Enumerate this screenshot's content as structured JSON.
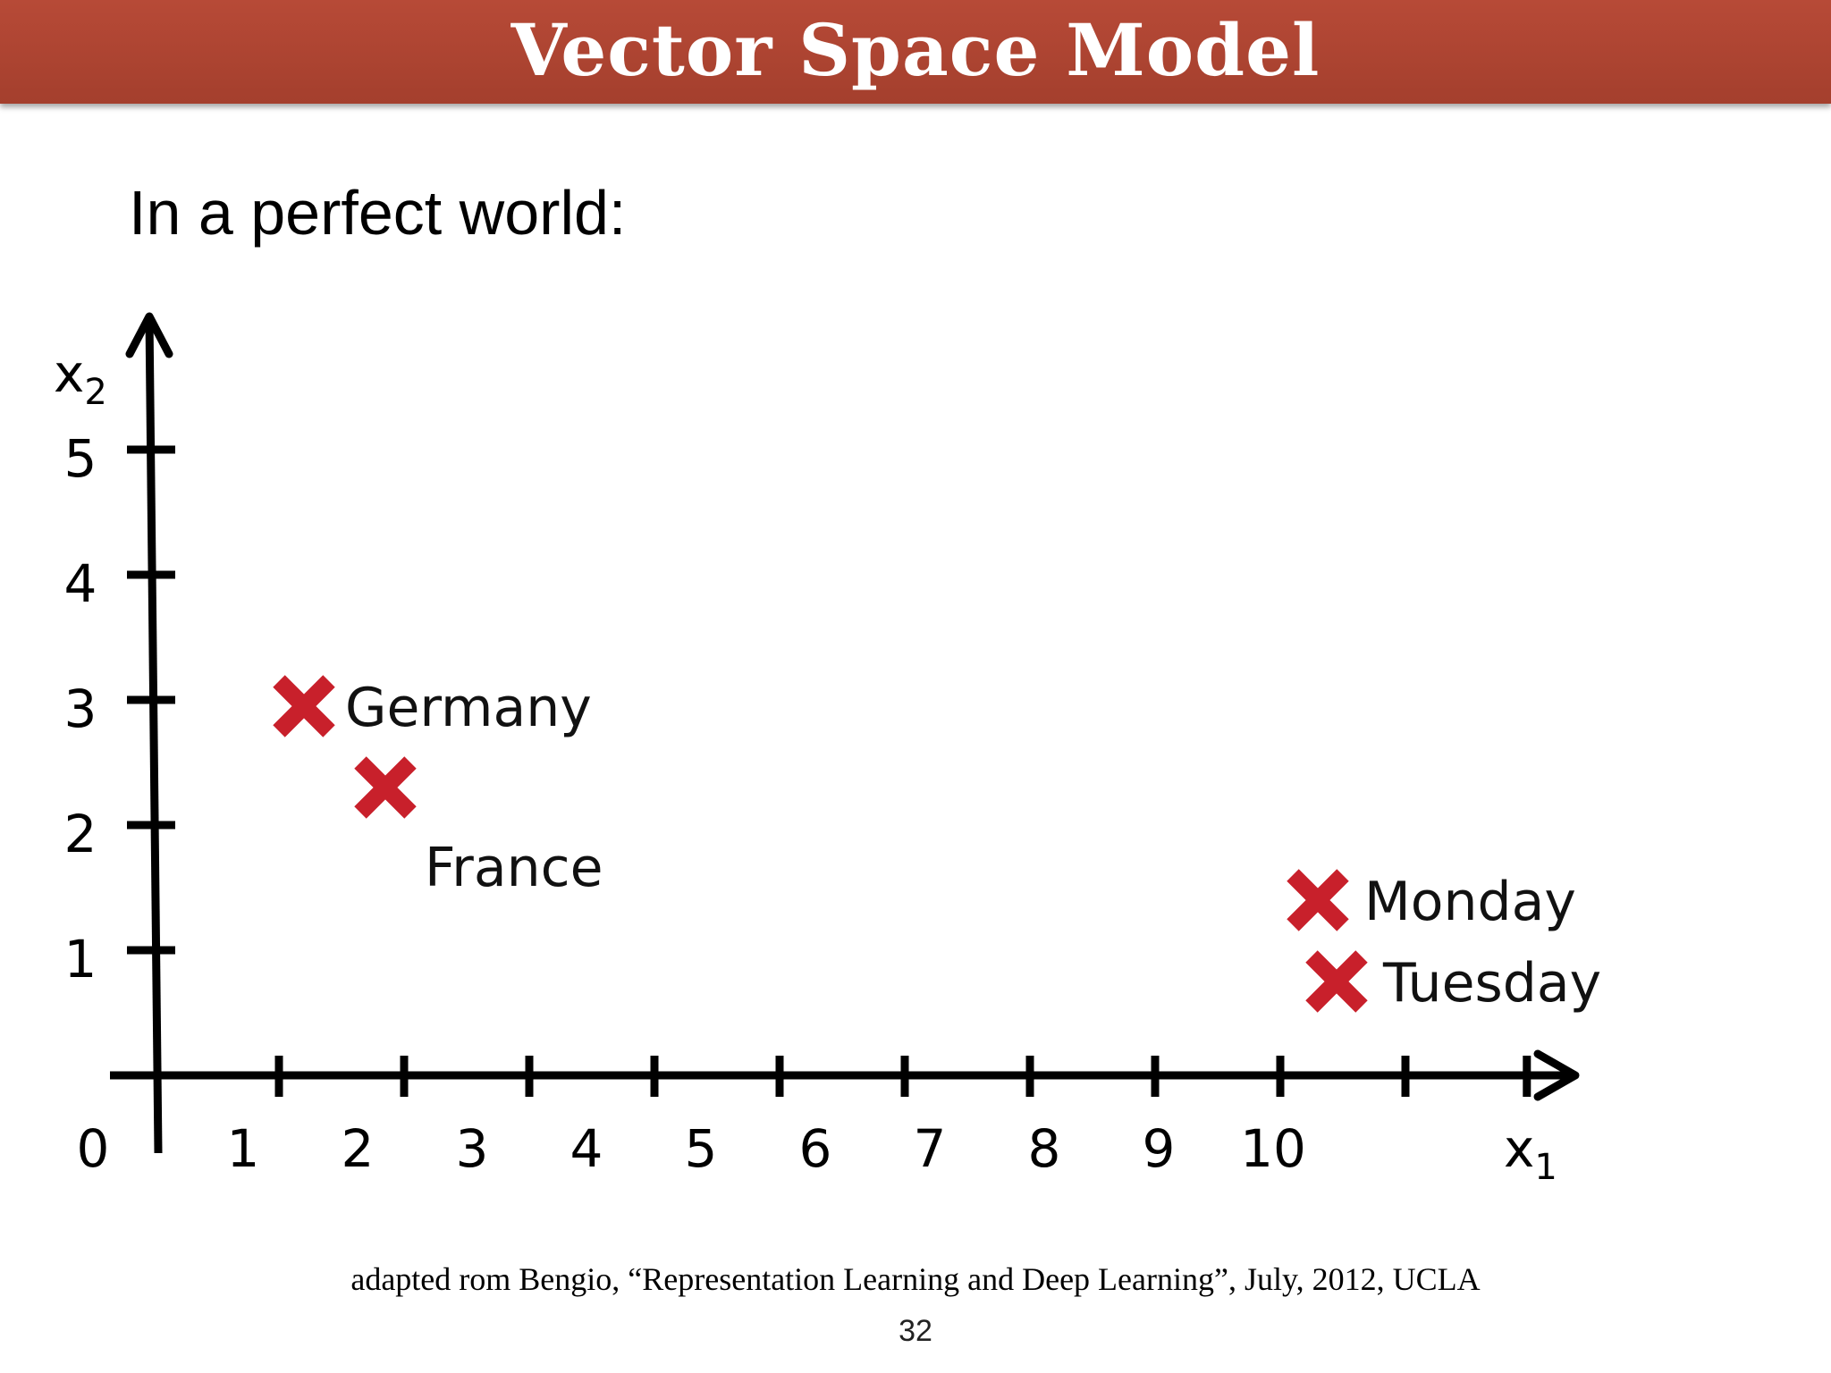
{
  "slide": {
    "title": "Vector Space Model",
    "subtitle": "In a perfect world:",
    "citation": "adapted rom Bengio, “Representation Learning and Deep Learning”, July, 2012, UCLA",
    "page_number": "32"
  },
  "colors": {
    "header": "#ad4431",
    "marker": "#c8202b",
    "axis": "#000000"
  },
  "chart_data": {
    "type": "scatter",
    "xlabel": "x1",
    "ylabel": "x2",
    "x_ticks": [
      0,
      1,
      2,
      3,
      4,
      5,
      6,
      7,
      8,
      9,
      10
    ],
    "y_ticks": [
      1,
      2,
      3,
      4,
      5
    ],
    "xlim": [
      0,
      11
    ],
    "ylim": [
      0,
      5.5
    ],
    "grid": false,
    "points": [
      {
        "label": "Germany",
        "x": 1.2,
        "y": 2.95
      },
      {
        "label": "France",
        "x": 1.85,
        "y": 2.3
      },
      {
        "label": "Monday",
        "x": 9.3,
        "y": 1.4
      },
      {
        "label": "Tuesday",
        "x": 9.45,
        "y": 0.75
      }
    ]
  }
}
